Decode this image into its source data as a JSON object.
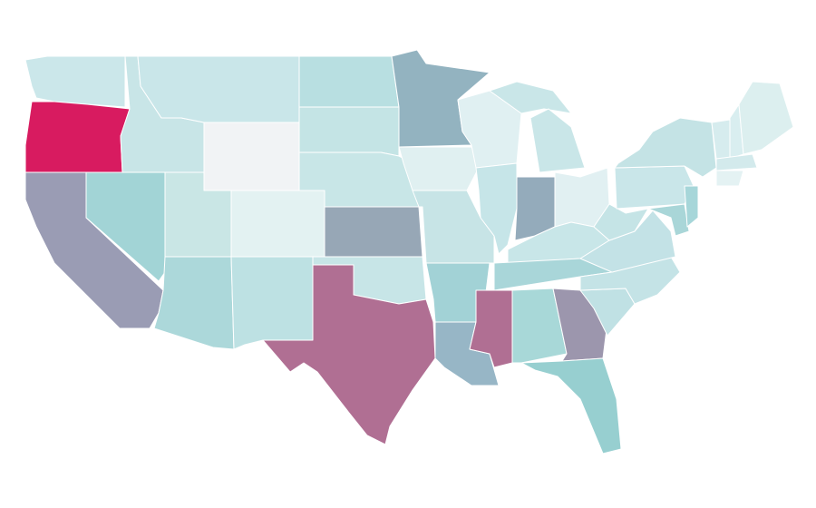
{
  "map": {
    "fills": [
      "#cbe7ea",
      "#d81b60",
      "#9a9cb4",
      "#a2d4d6",
      "#c8e5e7",
      "#c9e6e9",
      "#f1f3f5",
      "#c9e6e5",
      "#e3f2f2",
      "#acd8da",
      "#bde1e3",
      "#b8dfe1",
      "#c4e4e5",
      "#c8e6e7",
      "#97a7b6",
      "#c7e5e7",
      "#b06f93",
      "#93b3c0",
      "#e0f0f1",
      "#c7e4e6",
      "#a2d2d6",
      "#97b6c6",
      "#e0f0f2",
      "#c6e5e8",
      "#c9e6e8",
      "#c9e6e8",
      "#94abbb",
      "#e1f0f2",
      "#c8e6e8",
      "#a9d6d9",
      "#b06f93",
      "#a8d8d8",
      "#9c96ad",
      "#97cfd0",
      "#c0e1e4",
      "#c4e3e6",
      "#c3e2e6",
      "#c5e4e6",
      "#c9e6e9",
      "#c4e3e5",
      "#a9d6d8",
      "#a6d6d9",
      "#d6ecee",
      "#d9eef0",
      "#dcefef",
      "#d3eaec",
      "#e4f2f3"
    ]
  }
}
